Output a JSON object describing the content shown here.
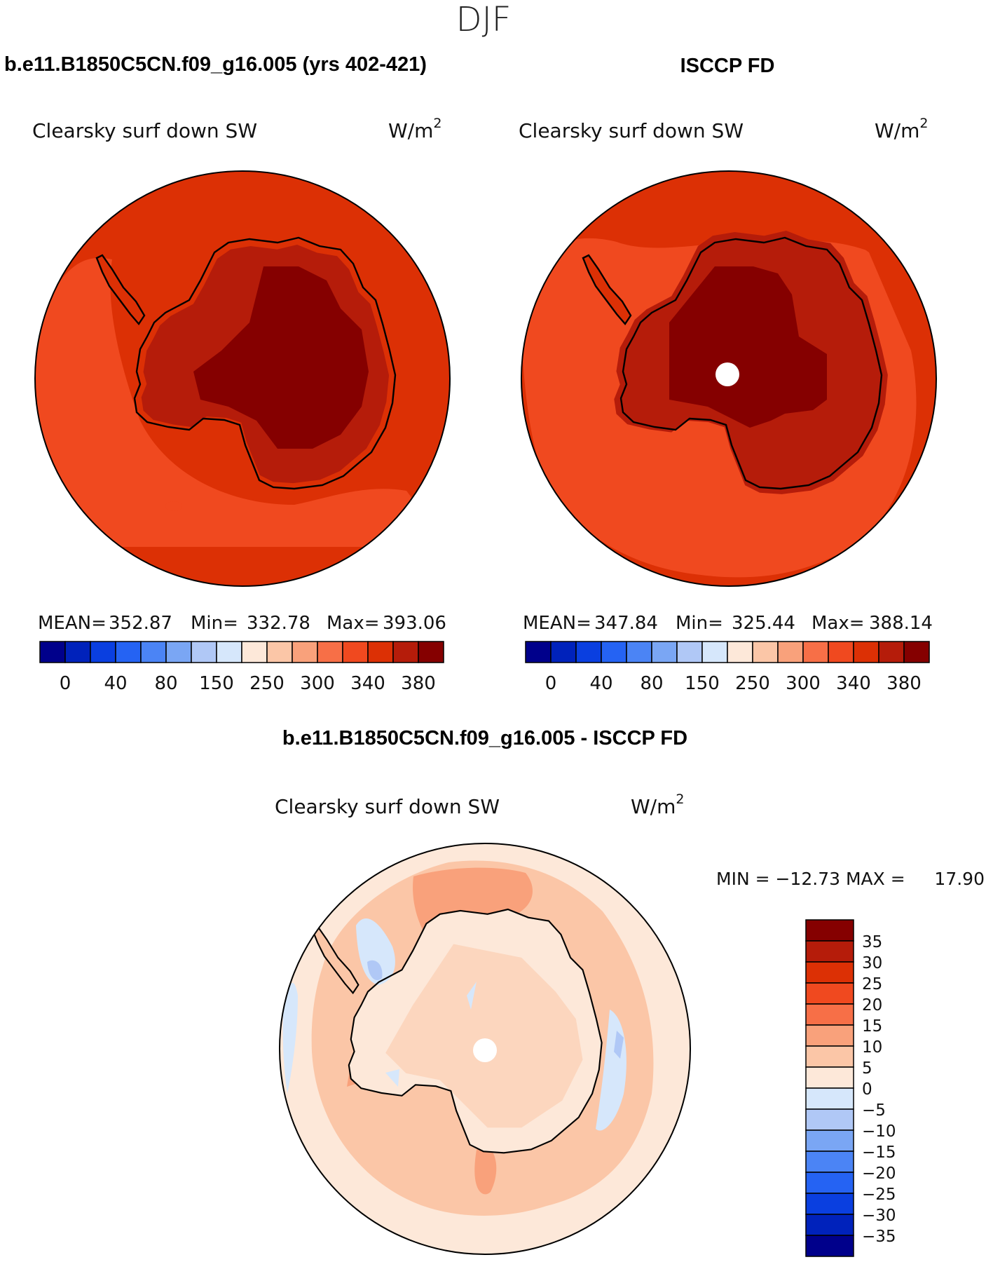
{
  "page": {
    "season": "DJF",
    "case_title": "b.e11.B1850C5CN.f09_g16.005 (yrs 402-421)",
    "obs_title": "ISCCP FD",
    "diff_title": "b.e11.B1850C5CN.f09_g16.005 - ISCCP FD"
  },
  "panels": {
    "model": {
      "variable": "Clearsky surf down SW",
      "units_base": "W/m",
      "units_exp": "2",
      "stats": {
        "mean_label": "MEAN=",
        "mean": "352.87",
        "min_label": "Min=",
        "min": "332.78",
        "max_label": "Max=",
        "max": "393.06"
      }
    },
    "obs": {
      "variable": "Clearsky surf down SW",
      "units_base": "W/m",
      "units_exp": "2",
      "stats": {
        "mean_label": "MEAN=",
        "mean": "347.84",
        "min_label": "Min=",
        "min": "325.44",
        "max_label": "Max=",
        "max": "388.14"
      }
    },
    "diff": {
      "variable": "Clearsky surf down SW",
      "units_base": "W/m",
      "units_exp": "2",
      "minmax_text": "MIN = −12.73 MAX =",
      "max_value": "17.90"
    }
  },
  "colorbars": {
    "field": {
      "colors": [
        "#00008b",
        "#0022bb",
        "#0a3fe0",
        "#2563f3",
        "#4b84f5",
        "#7aa6f4",
        "#b0c8f6",
        "#d6e7fb",
        "#fde8d9",
        "#fbc6a7",
        "#f9a17b",
        "#f76f47",
        "#f0491f",
        "#dc3005",
        "#b51c0a",
        "#850000"
      ],
      "ticks": [
        "0",
        "40",
        "80",
        "150",
        "250",
        "300",
        "340",
        "380"
      ]
    },
    "diff": {
      "colors": [
        "#850000",
        "#b51c0a",
        "#dc3005",
        "#f0491f",
        "#f76f47",
        "#f9a17b",
        "#fbc6a7",
        "#fde8d9",
        "#d6e7fb",
        "#b0c8f6",
        "#7aa6f4",
        "#4b84f5",
        "#2563f3",
        "#0a3fe0",
        "#0022bb",
        "#00008b"
      ],
      "ticks": [
        "35",
        "30",
        "25",
        "20",
        "15",
        "10",
        "5",
        "0",
        "−5",
        "−10",
        "−15",
        "−20",
        "−25",
        "−30",
        "−35"
      ]
    }
  }
}
